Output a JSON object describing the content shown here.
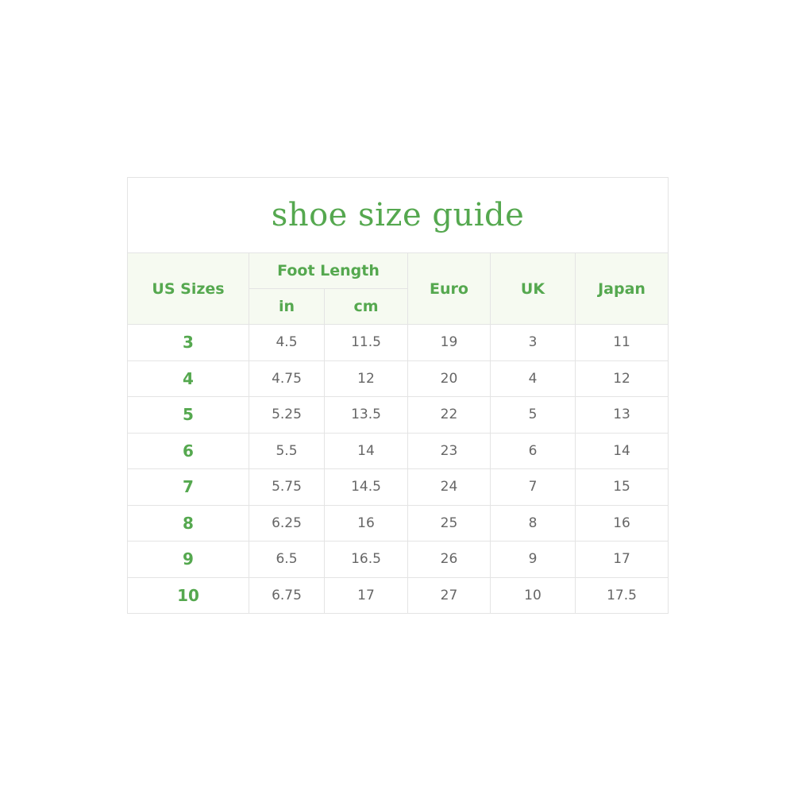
{
  "table": {
    "title": "shoe size guide",
    "headers": {
      "us": "US Sizes",
      "foot_length": "Foot Length",
      "in": "in",
      "cm": "cm",
      "euro": "Euro",
      "uk": "UK",
      "japan": "Japan"
    },
    "rows": [
      [
        "3",
        "4.5",
        "11.5",
        "19",
        "3",
        "11"
      ],
      [
        "4",
        "4.75",
        "12",
        "20",
        "4",
        "12"
      ],
      [
        "5",
        "5.25",
        "13.5",
        "22",
        "5",
        "13"
      ],
      [
        "6",
        "5.5",
        "14",
        "23",
        "6",
        "14"
      ],
      [
        "7",
        "5.75",
        "14.5",
        "24",
        "7",
        "15"
      ],
      [
        "8",
        "6.25",
        "16",
        "25",
        "8",
        "16"
      ],
      [
        "9",
        "6.5",
        "16.5",
        "26",
        "9",
        "17"
      ],
      [
        "10",
        "6.75",
        "17",
        "27",
        "10",
        "17.5"
      ]
    ]
  }
}
